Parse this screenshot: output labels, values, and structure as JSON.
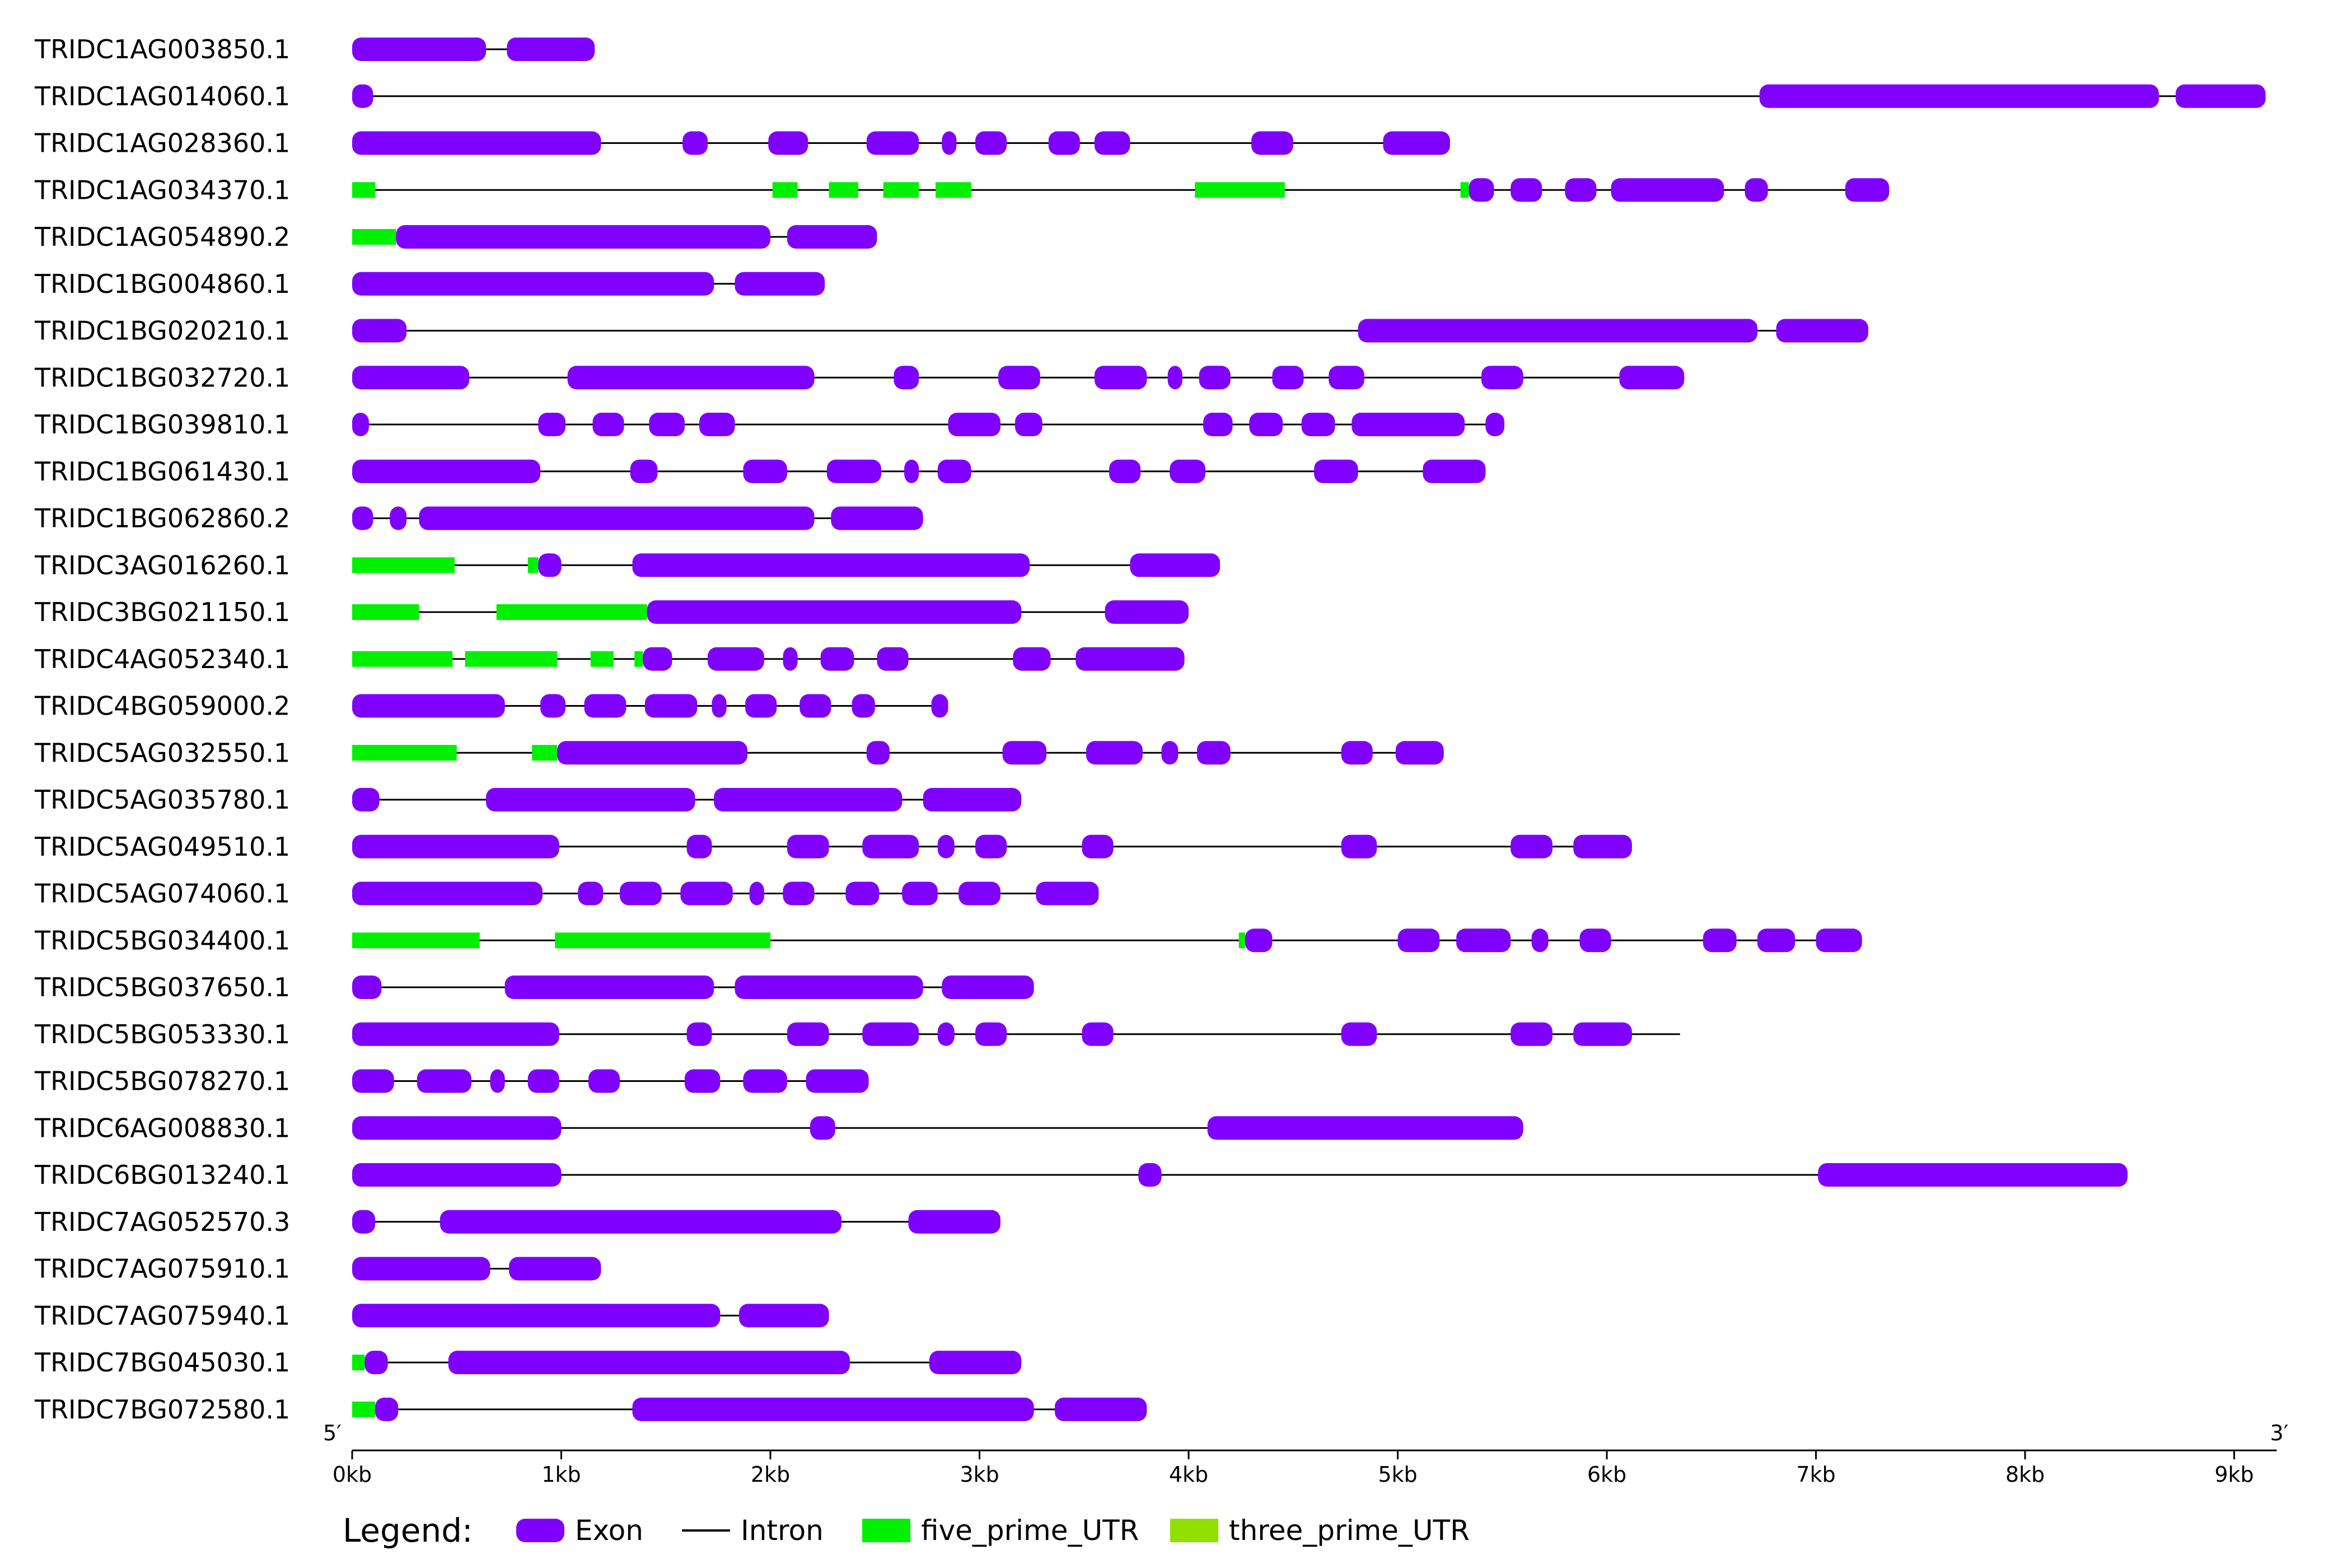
{
  "legend": {
    "title": "Legend:",
    "items": [
      {
        "name": "Exon",
        "kind": "exon",
        "color": "#8000FF"
      },
      {
        "name": "Intron",
        "kind": "intron",
        "color": "#000000"
      },
      {
        "name": "five_prime_UTR",
        "kind": "utr5",
        "color": "#00F000"
      },
      {
        "name": "three_prime_UTR",
        "kind": "utr3",
        "color": "#90E000"
      }
    ]
  },
  "axis": {
    "five_prime_label": "5′",
    "three_prime_label": "3′",
    "unit": "kb",
    "range_kb": [
      0,
      9.15
    ],
    "ticks": [
      {
        "value": 0,
        "label": "0kb"
      },
      {
        "value": 1,
        "label": "1kb"
      },
      {
        "value": 2,
        "label": "2kb"
      },
      {
        "value": 3,
        "label": "3kb"
      },
      {
        "value": 4,
        "label": "4kb"
      },
      {
        "value": 5,
        "label": "5kb"
      },
      {
        "value": 6,
        "label": "6kb"
      },
      {
        "value": 7,
        "label": "7kb"
      },
      {
        "value": 8,
        "label": "8kb"
      },
      {
        "value": 9,
        "label": "9kb"
      }
    ]
  },
  "genes": [
    {
      "name": "TRIDC1AG003850.1",
      "start": 0,
      "end": 1.16,
      "exons": [
        [
          0,
          0.64
        ],
        [
          0.74,
          1.16
        ]
      ],
      "utr5": []
    },
    {
      "name": "TRIDC1AG014060.1",
      "start": 0,
      "end": 9.15,
      "exons": [
        [
          0,
          0.1
        ],
        [
          6.73,
          8.64
        ],
        [
          8.72,
          9.15
        ]
      ],
      "utr5": []
    },
    {
      "name": "TRIDC1AG028360.1",
      "start": 0,
      "end": 5.25,
      "exons": [
        [
          0,
          1.19
        ],
        [
          1.58,
          1.7
        ],
        [
          1.99,
          2.18
        ],
        [
          2.46,
          2.71
        ],
        [
          2.82,
          2.89
        ],
        [
          2.98,
          3.13
        ],
        [
          3.33,
          3.48
        ],
        [
          3.55,
          3.72
        ],
        [
          4.3,
          4.5
        ],
        [
          4.93,
          5.25
        ]
      ],
      "utr5": []
    },
    {
      "name": "TRIDC1AG034370.1",
      "start": 0,
      "end": 7.35,
      "exons": [
        [
          5.34,
          5.46
        ],
        [
          5.54,
          5.69
        ],
        [
          5.8,
          5.95
        ],
        [
          6.02,
          6.56
        ],
        [
          6.66,
          6.77
        ],
        [
          7.14,
          7.35
        ]
      ],
      "utr5": [
        [
          0,
          0.11
        ],
        [
          2.01,
          2.13
        ],
        [
          2.28,
          2.42
        ],
        [
          2.54,
          2.71
        ],
        [
          2.79,
          2.96
        ],
        [
          4.03,
          4.46
        ],
        [
          5.3,
          5.34
        ]
      ]
    },
    {
      "name": "TRIDC1AG054890.2",
      "start": 0,
      "end": 2.51,
      "exons": [
        [
          0.21,
          2.0
        ],
        [
          2.08,
          2.51
        ]
      ],
      "utr5": [
        [
          0,
          0.21
        ]
      ]
    },
    {
      "name": "TRIDC1BG004860.1",
      "start": 0,
      "end": 2.26,
      "exons": [
        [
          0,
          1.73
        ],
        [
          1.83,
          2.26
        ]
      ],
      "utr5": []
    },
    {
      "name": "TRIDC1BG020210.1",
      "start": 0,
      "end": 7.25,
      "exons": [
        [
          0,
          0.26
        ],
        [
          4.81,
          6.72
        ],
        [
          6.81,
          7.25
        ]
      ],
      "utr5": []
    },
    {
      "name": "TRIDC1BG032720.1",
      "start": 0,
      "end": 6.37,
      "exons": [
        [
          0,
          0.56
        ],
        [
          1.03,
          2.21
        ],
        [
          2.59,
          2.71
        ],
        [
          3.09,
          3.29
        ],
        [
          3.55,
          3.8
        ],
        [
          3.9,
          3.97
        ],
        [
          4.05,
          4.2
        ],
        [
          4.4,
          4.55
        ],
        [
          4.67,
          4.84
        ],
        [
          5.4,
          5.6
        ],
        [
          6.06,
          6.37
        ]
      ],
      "utr5": []
    },
    {
      "name": "TRIDC1BG039810.1",
      "start": 0,
      "end": 5.51,
      "exons": [
        [
          0,
          0.08
        ],
        [
          0.89,
          1.02
        ],
        [
          1.15,
          1.3
        ],
        [
          1.42,
          1.59
        ],
        [
          1.66,
          1.83
        ],
        [
          2.85,
          3.1
        ],
        [
          3.17,
          3.3
        ],
        [
          4.07,
          4.21
        ],
        [
          4.29,
          4.45
        ],
        [
          4.54,
          4.7
        ],
        [
          4.78,
          5.32
        ],
        [
          5.42,
          5.51
        ]
      ],
      "utr5": []
    },
    {
      "name": "TRIDC1BG061430.1",
      "start": 0,
      "end": 5.42,
      "exons": [
        [
          0,
          0.9
        ],
        [
          1.33,
          1.46
        ],
        [
          1.87,
          2.08
        ],
        [
          2.27,
          2.53
        ],
        [
          2.64,
          2.71
        ],
        [
          2.8,
          2.96
        ],
        [
          3.62,
          3.77
        ],
        [
          3.91,
          4.08
        ],
        [
          4.6,
          4.81
        ],
        [
          5.12,
          5.42
        ]
      ],
      "utr5": []
    },
    {
      "name": "TRIDC1BG062860.2",
      "start": 0,
      "end": 2.73,
      "exons": [
        [
          0,
          0.1
        ],
        [
          0.18,
          0.26
        ],
        [
          0.32,
          2.21
        ],
        [
          2.29,
          2.73
        ]
      ],
      "utr5": []
    },
    {
      "name": "TRIDC3AG016260.1",
      "start": 0,
      "end": 4.15,
      "exons": [
        [
          0.89,
          1.0
        ],
        [
          1.34,
          3.24
        ],
        [
          3.72,
          4.15
        ]
      ],
      "utr5": [
        [
          0,
          0.49
        ],
        [
          0.84,
          0.89
        ]
      ]
    },
    {
      "name": "TRIDC3BG021150.1",
      "start": 0,
      "end": 4.0,
      "exons": [
        [
          1.41,
          3.2
        ],
        [
          3.6,
          4.0
        ]
      ],
      "utr5": [
        [
          0,
          0.32
        ],
        [
          0.69,
          1.41
        ]
      ]
    },
    {
      "name": "TRIDC4AG052340.1",
      "start": 0,
      "end": 3.98,
      "exons": [
        [
          1.39,
          1.53
        ],
        [
          1.7,
          1.97
        ],
        [
          2.06,
          2.13
        ],
        [
          2.24,
          2.4
        ],
        [
          2.51,
          2.66
        ],
        [
          3.16,
          3.34
        ],
        [
          3.46,
          3.98
        ]
      ],
      "utr5": [
        [
          0,
          0.48
        ],
        [
          0.54,
          0.98
        ],
        [
          1.14,
          1.25
        ],
        [
          1.35,
          1.39
        ]
      ]
    },
    {
      "name": "TRIDC4BG059000.2",
      "start": 0,
      "end": 2.85,
      "exons": [
        [
          0,
          0.73
        ],
        [
          0.9,
          1.02
        ],
        [
          1.11,
          1.31
        ],
        [
          1.4,
          1.65
        ],
        [
          1.72,
          1.79
        ],
        [
          1.88,
          2.03
        ],
        [
          2.14,
          2.29
        ],
        [
          2.39,
          2.5
        ],
        [
          2.77,
          2.85
        ]
      ],
      "utr5": []
    },
    {
      "name": "TRIDC5AG032550.1",
      "start": 0,
      "end": 5.22,
      "exons": [
        [
          0.98,
          1.89
        ],
        [
          2.46,
          2.57
        ],
        [
          3.11,
          3.32
        ],
        [
          3.51,
          3.78
        ],
        [
          3.87,
          3.95
        ],
        [
          4.04,
          4.2
        ],
        [
          4.73,
          4.88
        ],
        [
          4.99,
          5.22
        ]
      ],
      "utr5": [
        [
          0,
          0.5
        ],
        [
          0.86,
          0.98
        ]
      ]
    },
    {
      "name": "TRIDC5AG035780.1",
      "start": 0,
      "end": 3.2,
      "exons": [
        [
          0,
          0.13
        ],
        [
          0.64,
          1.64
        ],
        [
          1.73,
          2.63
        ],
        [
          2.73,
          3.2
        ]
      ],
      "utr5": []
    },
    {
      "name": "TRIDC5AG049510.1",
      "start": 0,
      "end": 6.12,
      "exons": [
        [
          0,
          0.99
        ],
        [
          1.6,
          1.72
        ],
        [
          2.08,
          2.28
        ],
        [
          2.44,
          2.71
        ],
        [
          2.8,
          2.88
        ],
        [
          2.98,
          3.13
        ],
        [
          3.49,
          3.64
        ],
        [
          4.73,
          4.9
        ],
        [
          5.54,
          5.74
        ],
        [
          5.84,
          6.12
        ]
      ],
      "utr5": []
    },
    {
      "name": "TRIDC5AG074060.1",
      "start": 0,
      "end": 3.57,
      "exons": [
        [
          0,
          0.91
        ],
        [
          1.08,
          1.2
        ],
        [
          1.28,
          1.48
        ],
        [
          1.57,
          1.82
        ],
        [
          1.9,
          1.97
        ],
        [
          2.06,
          2.21
        ],
        [
          2.36,
          2.52
        ],
        [
          2.63,
          2.8
        ],
        [
          2.9,
          3.1
        ],
        [
          3.27,
          3.57
        ]
      ],
      "utr5": []
    },
    {
      "name": "TRIDC5BG034400.1",
      "start": 0,
      "end": 7.22,
      "exons": [
        [
          4.27,
          4.4
        ],
        [
          5.0,
          5.2
        ],
        [
          5.28,
          5.54
        ],
        [
          5.64,
          5.72
        ],
        [
          5.87,
          6.02
        ],
        [
          6.46,
          6.62
        ],
        [
          6.72,
          6.9
        ],
        [
          7.0,
          7.22
        ]
      ],
      "utr5": [
        [
          0,
          0.61
        ],
        [
          0.97,
          2.0
        ],
        [
          4.24,
          4.27
        ]
      ]
    },
    {
      "name": "TRIDC5BG037650.1",
      "start": 0,
      "end": 3.26,
      "exons": [
        [
          0,
          0.14
        ],
        [
          0.73,
          1.73
        ],
        [
          1.83,
          2.73
        ],
        [
          2.82,
          3.26
        ]
      ],
      "utr5": []
    },
    {
      "name": "TRIDC5BG053330.1",
      "start": 0,
      "end": 6.35,
      "exons": [
        [
          0,
          0.99
        ],
        [
          1.6,
          1.72
        ],
        [
          2.08,
          2.28
        ],
        [
          2.44,
          2.71
        ],
        [
          2.8,
          2.88
        ],
        [
          2.98,
          3.13
        ],
        [
          3.49,
          3.64
        ],
        [
          4.73,
          4.9
        ],
        [
          5.54,
          5.74
        ],
        [
          5.84,
          6.12
        ]
      ],
      "utr5": []
    },
    {
      "name": "TRIDC5BG078270.1",
      "start": 0,
      "end": 2.47,
      "exons": [
        [
          0,
          0.2
        ],
        [
          0.31,
          0.57
        ],
        [
          0.66,
          0.73
        ],
        [
          0.84,
          0.99
        ],
        [
          1.13,
          1.28
        ],
        [
          1.59,
          1.76
        ],
        [
          1.87,
          2.08
        ],
        [
          2.17,
          2.47
        ]
      ],
      "utr5": []
    },
    {
      "name": "TRIDC6AG008830.1",
      "start": 0,
      "end": 5.6,
      "exons": [
        [
          0,
          1.0
        ],
        [
          2.19,
          2.31
        ],
        [
          4.09,
          5.6
        ]
      ],
      "utr5": []
    },
    {
      "name": "TRIDC6BG013240.1",
      "start": 0,
      "end": 8.49,
      "exons": [
        [
          0,
          1.0
        ],
        [
          3.76,
          3.87
        ],
        [
          7.01,
          8.49
        ]
      ],
      "utr5": []
    },
    {
      "name": "TRIDC7AG052570.3",
      "start": 0,
      "end": 3.1,
      "exons": [
        [
          0,
          0.11
        ],
        [
          0.42,
          2.34
        ],
        [
          2.66,
          3.1
        ]
      ],
      "utr5": []
    },
    {
      "name": "TRIDC7AG075910.1",
      "start": 0,
      "end": 1.19,
      "exons": [
        [
          0,
          0.66
        ],
        [
          0.75,
          1.19
        ]
      ],
      "utr5": []
    },
    {
      "name": "TRIDC7AG075940.1",
      "start": 0,
      "end": 2.28,
      "exons": [
        [
          0,
          1.76
        ],
        [
          1.85,
          2.28
        ]
      ],
      "utr5": []
    },
    {
      "name": "TRIDC7BG045030.1",
      "start": 0,
      "end": 3.2,
      "exons": [
        [
          0.06,
          0.17
        ],
        [
          0.46,
          2.38
        ],
        [
          2.76,
          3.2
        ]
      ],
      "utr5": [
        [
          0,
          0.06
        ]
      ]
    },
    {
      "name": "TRIDC7BG072580.1",
      "start": 0,
      "end": 3.8,
      "exons": [
        [
          0.11,
          0.22
        ],
        [
          1.34,
          3.26
        ],
        [
          3.36,
          3.8
        ]
      ],
      "utr5": [
        [
          0,
          0.11
        ]
      ]
    }
  ]
}
